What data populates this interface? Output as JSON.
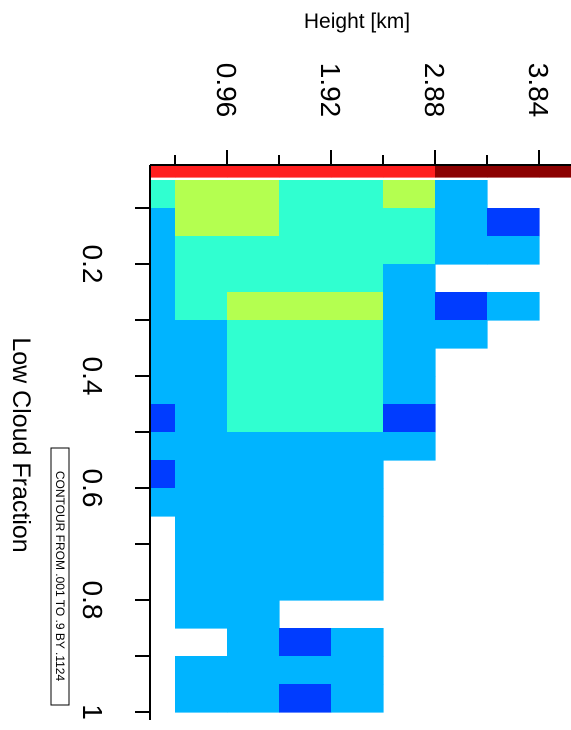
{
  "chart_data": {
    "type": "heatmap",
    "title": "",
    "xlabel": "Height [km]",
    "ylabel": "Low Cloud Fraction",
    "annotation": "CONTOUR FROM .001 TO .9 BY .1124",
    "height_ticks": [
      0.96,
      1.92,
      2.88,
      3.84
    ],
    "height_tick_labels": [
      "0.96",
      "1.92",
      "2.88",
      "3.84"
    ],
    "height_range": [
      0,
      3.84
    ],
    "fraction_ticks": [
      0.2,
      0.4,
      0.6,
      0.8,
      1
    ],
    "fraction_tick_labels": [
      "0.2",
      "0.4",
      "0.6",
      "0.8",
      "1"
    ],
    "fraction_range": [
      0,
      1
    ],
    "contour_levels": [
      0.001,
      0.1134,
      0.2258,
      0.3382,
      0.4506,
      0.563,
      0.6754,
      0.7878,
      0.9
    ],
    "colors": [
      "#003cff",
      "#00b4ff",
      "#30ffd0",
      "#b4ff50",
      "#ff1e1e",
      "#8b0000"
    ],
    "height_bins": [
      0,
      0.48,
      0.96,
      1.44,
      1.92,
      2.4,
      2.88,
      3.36,
      3.84,
      4.32
    ],
    "fraction_bins": [
      0,
      0.05,
      0.1,
      0.15,
      0.2,
      0.25,
      0.3,
      0.35,
      0.4,
      0.45,
      0.5,
      0.55,
      0.6,
      0.65,
      0.7,
      0.75,
      0.8,
      0.85,
      0.9,
      0.95,
      1.0
    ],
    "grid": [
      [
        4,
        4,
        4,
        4,
        4,
        4,
        5,
        5,
        5
      ],
      [
        2,
        3,
        3,
        2,
        2,
        3,
        1,
        -1,
        -1
      ],
      [
        1,
        3,
        3,
        2,
        2,
        2,
        1,
        0,
        -1
      ],
      [
        1,
        2,
        2,
        2,
        2,
        2,
        1,
        1,
        -1
      ],
      [
        1,
        2,
        2,
        2,
        2,
        1,
        -1,
        -1,
        -1
      ],
      [
        1,
        2,
        3,
        3,
        3,
        1,
        0,
        1,
        -1
      ],
      [
        1,
        1,
        2,
        2,
        2,
        1,
        1,
        -1,
        -1
      ],
      [
        1,
        1,
        2,
        2,
        2,
        1,
        -1,
        -1,
        -1
      ],
      [
        1,
        1,
        2,
        2,
        2,
        1,
        -1,
        -1,
        -1
      ],
      [
        0,
        1,
        2,
        2,
        2,
        0,
        -1,
        -1,
        -1
      ],
      [
        1,
        1,
        1,
        1,
        1,
        1,
        -1,
        -1,
        -1
      ],
      [
        0,
        1,
        1,
        1,
        1,
        -1,
        -1,
        -1,
        -1
      ],
      [
        1,
        1,
        1,
        1,
        1,
        -1,
        -1,
        -1,
        -1
      ],
      [
        -1,
        1,
        1,
        1,
        1,
        -1,
        -1,
        -1,
        -1
      ],
      [
        -1,
        1,
        1,
        1,
        1,
        -1,
        -1,
        -1,
        -1
      ],
      [
        -1,
        1,
        1,
        1,
        1,
        -1,
        -1,
        -1,
        -1
      ],
      [
        -1,
        1,
        1,
        -1,
        -1,
        -1,
        -1,
        -1,
        -1
      ],
      [
        -1,
        -1,
        1,
        0,
        1,
        -1,
        -1,
        -1,
        -1
      ],
      [
        -1,
        1,
        1,
        1,
        1,
        -1,
        -1,
        -1,
        -1
      ],
      [
        -1,
        1,
        1,
        0,
        1,
        -1,
        -1,
        -1,
        -1
      ],
      [
        1,
        1,
        1,
        1,
        1,
        -1,
        -1,
        -1,
        -1
      ]
    ]
  }
}
